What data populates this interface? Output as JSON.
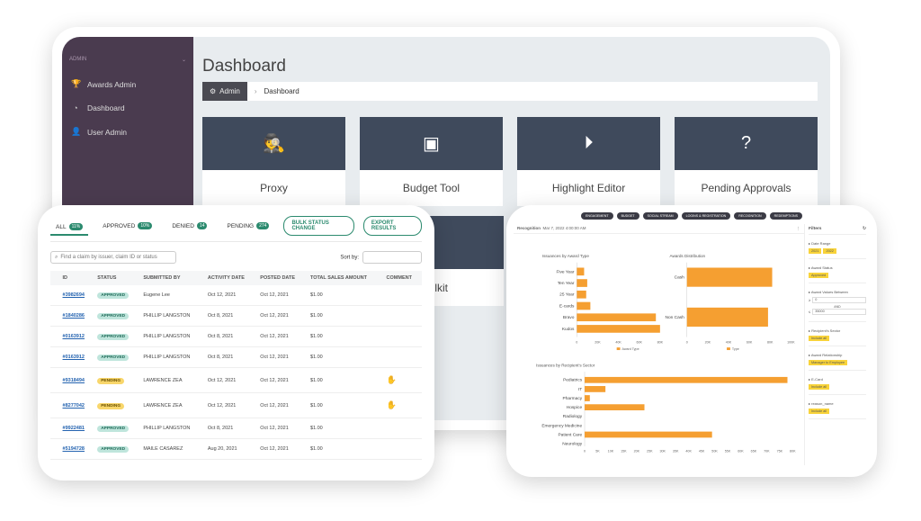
{
  "sidebar": {
    "section": "ADMIN",
    "items": [
      {
        "label": "Awards Admin",
        "icon": "trophy-icon"
      },
      {
        "label": "Dashboard",
        "icon": "dashboard-icon"
      },
      {
        "label": "User Admin",
        "icon": "user-icon"
      }
    ]
  },
  "dashboard": {
    "title": "Dashboard",
    "breadcrumb_home": "Admin",
    "breadcrumb_current": "Dashboard",
    "cards": [
      {
        "label": "Proxy",
        "icon": "spy-icon"
      },
      {
        "label": "Budget Tool",
        "icon": "money-icon"
      },
      {
        "label": "Highlight Editor",
        "icon": "play-icon"
      },
      {
        "label": "Pending Approvals",
        "icon": "question-icon"
      }
    ],
    "card_partial": "lkit"
  },
  "claims": {
    "tabs": [
      {
        "label": "ALL",
        "count": "11%"
      },
      {
        "label": "APPROVED",
        "count": "10%"
      },
      {
        "label": "DENIED",
        "count": "14"
      },
      {
        "label": "PENDING",
        "count": "274"
      }
    ],
    "bulk_button": "BULK STATUS CHANGE",
    "export_button": "EXPORT RESULTS",
    "search_placeholder": "Find a claim by issuer, claim ID or status",
    "sort_label": "Sort by:",
    "columns": [
      "ID",
      "STATUS",
      "SUBMITTED BY",
      "ACTIVITY DATE",
      "POSTED DATE",
      "TOTAL SALES AMOUNT",
      "COMMENT"
    ],
    "rows": [
      {
        "id": "#3982694",
        "status": "APPROVED",
        "by": "Eugene Lee",
        "activity": "Oct 12, 2021",
        "posted": "Oct 12, 2021",
        "amount": "$1.00",
        "comment": ""
      },
      {
        "id": "#1840286",
        "status": "APPROVED",
        "by": "PHILLIP LANGSTON",
        "activity": "Oct 8, 2021",
        "posted": "Oct 12, 2021",
        "amount": "$1.00",
        "comment": ""
      },
      {
        "id": "#0163912",
        "status": "APPROVED",
        "by": "PHILLIP LANGSTON",
        "activity": "Oct 8, 2021",
        "posted": "Oct 12, 2021",
        "amount": "$1.00",
        "comment": ""
      },
      {
        "id": "#0163912",
        "status": "APPROVED",
        "by": "PHILLIP LANGSTON",
        "activity": "Oct 8, 2021",
        "posted": "Oct 12, 2021",
        "amount": "$1.00",
        "comment": ""
      },
      {
        "id": "#9318494",
        "status": "PENDING",
        "by": "LAWRENCE ZEA",
        "activity": "Oct 12, 2021",
        "posted": "Oct 12, 2021",
        "amount": "$1.00",
        "comment": "hand"
      },
      {
        "id": "#8277042",
        "status": "PENDING",
        "by": "LAWRENCE ZEA",
        "activity": "Oct 12, 2021",
        "posted": "Oct 12, 2021",
        "amount": "$1.00",
        "comment": "hand"
      },
      {
        "id": "#9922481",
        "status": "APPROVED",
        "by": "PHILLIP LANGSTON",
        "activity": "Oct 8, 2021",
        "posted": "Oct 12, 2021",
        "amount": "$1.00",
        "comment": ""
      },
      {
        "id": "#5194728",
        "status": "APPROVED",
        "by": "MAILE CASAREZ",
        "activity": "Aug 20, 2021",
        "posted": "Oct 12, 2021",
        "amount": "$1.00",
        "comment": ""
      }
    ]
  },
  "analytics": {
    "pills": [
      "ENGAGEMENT",
      "BUDGET",
      "SOCIAL STREAM",
      "LOGINS & REGISTRATION",
      "RECOGNITION",
      "REDEMPTIONS"
    ],
    "header_title": "Recognition",
    "header_date": "Mar 7, 2022 4:00:00 AM",
    "filters": {
      "title": "Filters",
      "blocks": [
        {
          "label": "Date Range",
          "chips": [
            "2021",
            "2022"
          ]
        },
        {
          "label": "Award Status",
          "chips": [
            "Approved"
          ]
        },
        {
          "label": "Award Values Between",
          "range_from": "0",
          "range_to": "35000",
          "range_mid": "AND"
        },
        {
          "label": "Recipient's Sector",
          "chips": [
            "Include all"
          ]
        },
        {
          "label": "Award Relationship",
          "chips": [
            "Manager to Employee"
          ]
        },
        {
          "label": "E-Card",
          "chips": [
            "Include all"
          ]
        },
        {
          "label": "reason_name",
          "chips": [
            "Include all"
          ]
        }
      ]
    }
  },
  "chart_data": [
    {
      "type": "bar",
      "orientation": "horizontal",
      "title": "Issuances by Award Type",
      "categories": [
        "Five Year",
        "Ten Year",
        "25 Year",
        "E-cards",
        "Bravo",
        "Kudos"
      ],
      "values": [
        7,
        10,
        9,
        13,
        76,
        80
      ],
      "xlim": [
        0,
        100
      ],
      "ticks": [
        "0",
        "20K",
        "40K",
        "60K",
        "80K"
      ],
      "legend": "Award Type",
      "color": "#f59f31"
    },
    {
      "type": "bar",
      "orientation": "horizontal",
      "title": "Awards Distribution",
      "categories": [
        "Cash",
        "Non Cash"
      ],
      "values": [
        82,
        78
      ],
      "xlim": [
        0,
        100
      ],
      "ticks": [
        "0",
        "20K",
        "40K",
        "60K",
        "80K",
        "100K"
      ],
      "legend": "Type",
      "color": "#f59f31"
    },
    {
      "type": "bar",
      "orientation": "horizontal",
      "title": "Issuances by Recipient's Sector",
      "categories": [
        "Pediatrics",
        "IT",
        "Pharmacy",
        "Hospice",
        "Radiology",
        "Emergency Medicine",
        "Patient Care",
        "Neurology"
      ],
      "values": [
        78,
        8,
        2,
        23,
        0,
        0,
        49,
        0
      ],
      "xlim": [
        0,
        80
      ],
      "ticks": [
        "0",
        "5K",
        "10K",
        "15K",
        "20K",
        "25K",
        "30K",
        "35K",
        "40K",
        "45K",
        "50K",
        "55K",
        "60K",
        "65K",
        "70K",
        "75K",
        "80K"
      ],
      "color": "#f59f31"
    }
  ]
}
